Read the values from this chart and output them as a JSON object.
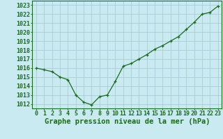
{
  "x": [
    0,
    1,
    2,
    3,
    4,
    5,
    6,
    7,
    8,
    9,
    10,
    11,
    12,
    13,
    14,
    15,
    16,
    17,
    18,
    19,
    20,
    21,
    22,
    23
  ],
  "y": [
    1016.0,
    1015.8,
    1015.6,
    1015.0,
    1014.7,
    1013.0,
    1012.2,
    1011.9,
    1012.8,
    1013.0,
    1014.5,
    1016.2,
    1016.5,
    1017.0,
    1017.5,
    1018.1,
    1018.5,
    1019.0,
    1019.5,
    1020.3,
    1021.1,
    1022.0,
    1022.2,
    1022.9
  ],
  "line_color": "#1a6b1a",
  "marker_color": "#1a6b1a",
  "bg_color": "#c8eaf0",
  "grid_color": "#aaccd8",
  "title": "Graphe pression niveau de la mer (hPa)",
  "xlabel_ticks": [
    0,
    1,
    2,
    3,
    4,
    5,
    6,
    7,
    8,
    9,
    10,
    11,
    12,
    13,
    14,
    15,
    16,
    17,
    18,
    19,
    20,
    21,
    22,
    23
  ],
  "ytick_labels": [
    1012,
    1013,
    1014,
    1015,
    1016,
    1017,
    1018,
    1019,
    1020,
    1021,
    1022,
    1023
  ],
  "ylim": [
    1011.5,
    1023.5
  ],
  "xlim": [
    -0.5,
    23.5
  ],
  "title_fontsize": 7.5,
  "tick_fontsize": 6.0,
  "label_color": "#1a6b1a",
  "spine_color": "#1a6b1a"
}
